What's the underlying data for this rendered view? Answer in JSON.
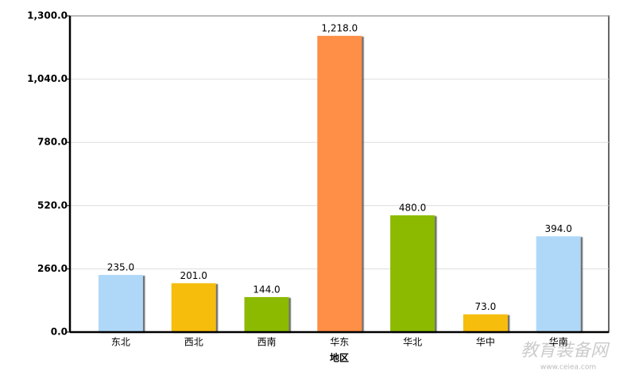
{
  "chart_data": {
    "type": "bar",
    "x_label": "地区",
    "categories": [
      "东北",
      "西北",
      "西南",
      "华东",
      "华北",
      "华中",
      "华南"
    ],
    "values": [
      235,
      201,
      144,
      1218,
      480,
      73,
      394
    ],
    "value_labels": [
      "235.0",
      "201.0",
      "144.0",
      "1,218.0",
      "480.0",
      "73.0",
      "394.0"
    ],
    "colors": [
      "#afd8f8",
      "#f6bd0f",
      "#8bba00",
      "#ff8e46",
      "#8bba00",
      "#f6bd0f",
      "#afd8f8"
    ],
    "ylim": [
      0,
      1300
    ],
    "yticks": [
      {
        "value": 0,
        "label": "0.0"
      },
      {
        "value": 260,
        "label": "260.0"
      },
      {
        "value": 520,
        "label": "520.0"
      },
      {
        "value": 780,
        "label": "780.0"
      },
      {
        "value": 1040,
        "label": "1,040.0"
      },
      {
        "value": 1300,
        "label": "1,300.0"
      }
    ],
    "grid": true,
    "watermark": [
      "教育装备网",
      "www.ceiea.com"
    ]
  }
}
